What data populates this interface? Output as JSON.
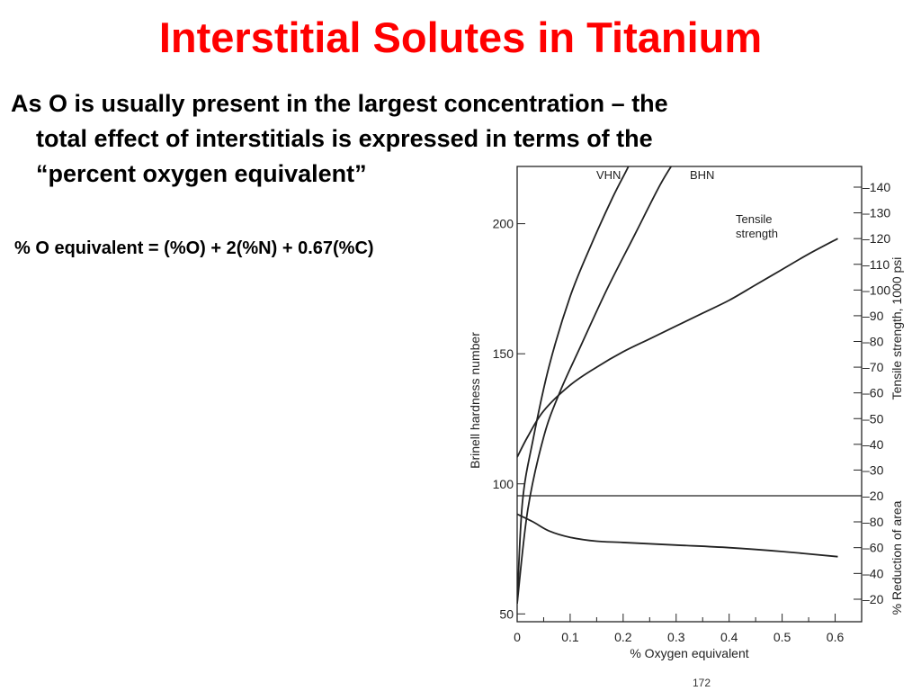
{
  "slide": {
    "title": "Interstitial Solutes in Titanium",
    "bullet_line1": "As O is usually present in the largest concentration – the",
    "bullet_line2": "total effect of interstitials is expressed in terms of the",
    "bullet_line3": "“percent oxygen equivalent”",
    "formula": "% O equivalent = (%O) + 2(%N) + 0.67(%C)",
    "page_number": "172"
  },
  "colors": {
    "title": "#ff0000",
    "text": "#000000",
    "curve": "#222222"
  },
  "chart_data": {
    "type": "line",
    "xlabel": "% Oxygen equivalent",
    "xlim": [
      0,
      0.65
    ],
    "x_ticks": [
      "0",
      "0.1",
      "0.2",
      "0.3",
      "0.4",
      "0.5",
      "0.6"
    ],
    "y_left": {
      "label": "Brinell hardness number",
      "lim": [
        47,
        222
      ],
      "ticks": [
        "50",
        "100",
        "150",
        "200"
      ]
    },
    "y_right_upper": {
      "label": "Tensile strength, 1000 psi",
      "lim": [
        15,
        140
      ],
      "ticks": [
        "20",
        "30",
        "40",
        "50",
        "60",
        "70",
        "80",
        "90",
        "100",
        "110",
        "120",
        "130",
        "140"
      ]
    },
    "y_right_lower": {
      "label": "% Reduction of area",
      "lim": [
        20,
        93
      ],
      "ticks": [
        "20",
        "40",
        "60",
        "80"
      ]
    },
    "divider": {
      "value": 20,
      "axis": "tensile"
    },
    "series": [
      {
        "name": "VHN",
        "axis": "brinell",
        "x": [
          0,
          0.01,
          0.03,
          0.06,
          0.1,
          0.14,
          0.18,
          0.21,
          0.235
        ],
        "y": [
          54,
          93,
          117,
          145,
          172,
          192,
          210,
          222,
          233
        ]
      },
      {
        "name": "BHN",
        "axis": "brinell",
        "x": [
          0,
          0.02,
          0.05,
          0.08,
          0.12,
          0.17,
          0.22,
          0.27,
          0.3,
          0.325
        ],
        "y": [
          54,
          90,
          118,
          135,
          153,
          175,
          195,
          215,
          225,
          233
        ]
      },
      {
        "name": "Tensile strength",
        "axis": "tensile",
        "x": [
          0,
          0.02,
          0.05,
          0.1,
          0.15,
          0.2,
          0.25,
          0.3,
          0.35,
          0.4,
          0.45,
          0.5,
          0.55,
          0.605
        ],
        "y": [
          35,
          43,
          53,
          63,
          70,
          76,
          81,
          86,
          91,
          96,
          102,
          108,
          114,
          120
        ]
      },
      {
        "name": "% Reduction of area",
        "axis": "reduction",
        "x": [
          0,
          0.03,
          0.06,
          0.1,
          0.15,
          0.2,
          0.3,
          0.4,
          0.5,
          0.605
        ],
        "y": [
          86,
          80,
          73,
          68,
          65,
          64,
          62,
          60,
          57,
          53
        ]
      }
    ]
  }
}
